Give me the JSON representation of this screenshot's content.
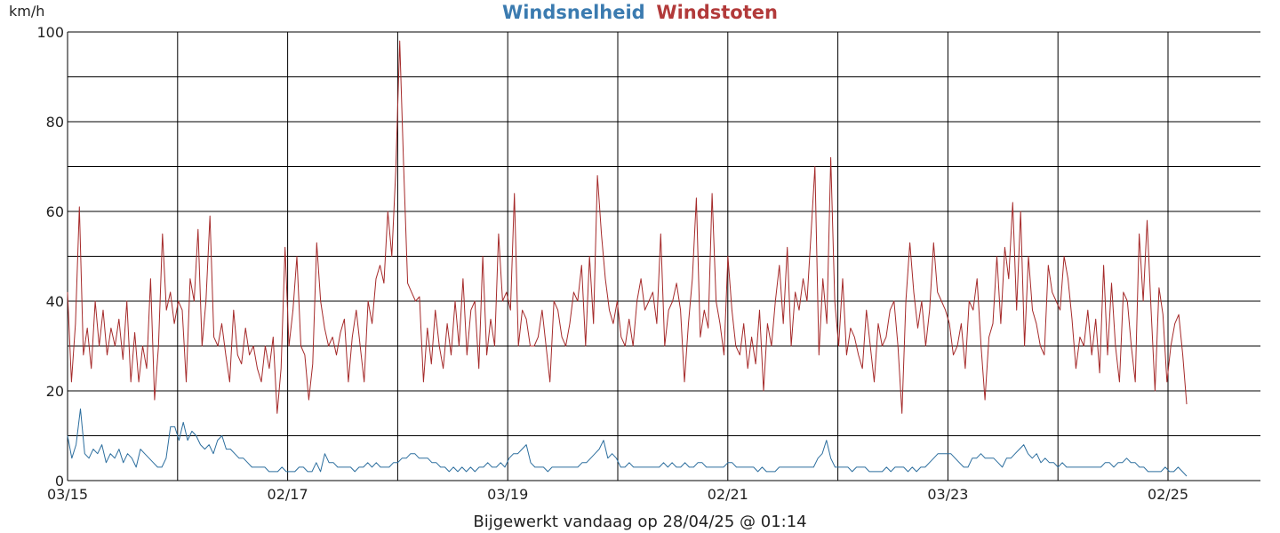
{
  "chart_data": {
    "type": "line",
    "title_series_1": "Windsnelheid",
    "title_series_2": "Windstoten",
    "ylabel": "km/h",
    "ylim": [
      0,
      100
    ],
    "yticks": [
      "0",
      "20",
      "40",
      "60",
      "80",
      "100"
    ],
    "xticks": [
      "03/15",
      "02/17",
      "03/19",
      "02/21",
      "03/23",
      "02/25"
    ],
    "footer": "Bijgewerkt vandaag op 28/04/25 @ 01:14",
    "grid": true,
    "colors": {
      "speed": "#2c6e9e",
      "gust": "#a52a2a"
    },
    "series": [
      {
        "name": "Windsnelheid",
        "values": [
          10,
          5,
          8,
          16,
          6,
          5,
          7,
          6,
          8,
          4,
          6,
          5,
          7,
          4,
          6,
          5,
          3,
          7,
          6,
          5,
          4,
          3,
          3,
          5,
          12,
          12,
          9,
          13,
          9,
          11,
          10,
          8,
          7,
          8,
          6,
          9,
          10,
          7,
          7,
          6,
          5,
          5,
          4,
          3,
          3,
          3,
          3,
          2,
          2,
          2,
          3,
          2,
          2,
          2,
          3,
          3,
          2,
          2,
          4,
          2,
          6,
          4,
          4,
          3,
          3,
          3,
          3,
          2,
          3,
          3,
          4,
          3,
          4,
          3,
          3,
          3,
          4,
          4,
          5,
          5,
          6,
          6,
          5,
          5,
          5,
          4,
          4,
          3,
          3,
          2,
          3,
          2,
          3,
          2,
          3,
          2,
          3,
          3,
          4,
          3,
          3,
          4,
          3,
          5,
          6,
          6,
          7,
          8,
          4,
          3,
          3,
          3,
          2,
          3,
          3,
          3,
          3,
          3,
          3,
          3,
          4,
          4,
          5,
          6,
          7,
          9,
          5,
          6,
          5,
          3,
          3,
          4,
          3,
          3,
          3,
          3,
          3,
          3,
          3,
          4,
          3,
          4,
          3,
          3,
          4,
          3,
          3,
          4,
          4,
          3,
          3,
          3,
          3,
          3,
          4,
          4,
          3,
          3,
          3,
          3,
          3,
          2,
          3,
          2,
          2,
          2,
          3,
          3,
          3,
          3,
          3,
          3,
          3,
          3,
          3,
          5,
          6,
          9,
          5,
          3,
          3,
          3,
          3,
          2,
          3,
          3,
          3,
          2,
          2,
          2,
          2,
          3,
          2,
          3,
          3,
          3,
          2,
          3,
          2,
          3,
          3,
          4,
          5,
          6,
          6,
          6,
          6,
          5,
          4,
          3,
          3,
          5,
          5,
          6,
          5,
          5,
          5,
          4,
          3,
          5,
          5,
          6,
          7,
          8,
          6,
          5,
          6,
          4,
          5,
          4,
          4,
          3,
          4,
          3,
          3,
          3,
          3,
          3,
          3,
          3,
          3,
          3,
          4,
          4,
          3,
          4,
          4,
          5,
          4,
          4,
          3,
          3,
          2,
          2,
          2,
          2,
          3,
          2,
          2,
          3,
          2,
          1
        ]
      },
      {
        "name": "Windstoten",
        "values": [
          42,
          22,
          35,
          61,
          28,
          34,
          25,
          40,
          30,
          38,
          28,
          34,
          30,
          36,
          27,
          40,
          22,
          33,
          22,
          30,
          25,
          45,
          18,
          30,
          55,
          38,
          42,
          35,
          40,
          38,
          22,
          45,
          40,
          56,
          30,
          40,
          59,
          32,
          30,
          35,
          28,
          22,
          38,
          28,
          26,
          34,
          28,
          30,
          25,
          22,
          30,
          25,
          32,
          15,
          25,
          52,
          30,
          38,
          50,
          30,
          28,
          18,
          26,
          53,
          40,
          34,
          30,
          32,
          28,
          33,
          36,
          22,
          32,
          38,
          30,
          22,
          40,
          35,
          45,
          48,
          44,
          60,
          50,
          69,
          98,
          70,
          44,
          42,
          40,
          41,
          22,
          34,
          26,
          38,
          30,
          25,
          35,
          28,
          40,
          30,
          45,
          28,
          38,
          40,
          25,
          50,
          28,
          36,
          30,
          55,
          40,
          42,
          38,
          64,
          30,
          38,
          36,
          30,
          30,
          32,
          38,
          30,
          22,
          40,
          38,
          32,
          30,
          35,
          42,
          40,
          48,
          30,
          50,
          35,
          68,
          55,
          45,
          38,
          35,
          40,
          32,
          30,
          36,
          30,
          40,
          45,
          38,
          40,
          42,
          35,
          55,
          30,
          38,
          40,
          44,
          38,
          22,
          35,
          45,
          63,
          32,
          38,
          34,
          64,
          40,
          35,
          28,
          50,
          38,
          30,
          28,
          35,
          25,
          32,
          26,
          38,
          20,
          35,
          30,
          40,
          48,
          35,
          52,
          30,
          42,
          38,
          45,
          40,
          55,
          70,
          28,
          45,
          35,
          72,
          40,
          30,
          45,
          28,
          34,
          32,
          28,
          25,
          38,
          30,
          22,
          35,
          30,
          32,
          38,
          40,
          30,
          15,
          40,
          53,
          42,
          34,
          40,
          30,
          38,
          53,
          42,
          40,
          38,
          35,
          28,
          30,
          35,
          25,
          40,
          38,
          45,
          30,
          18,
          32,
          35,
          50,
          35,
          52,
          45,
          62,
          38,
          60,
          30,
          50,
          38,
          35,
          30,
          28,
          48,
          42,
          40,
          38,
          50,
          45,
          36,
          25,
          32,
          30,
          38,
          28,
          36,
          24,
          48,
          28,
          44,
          30,
          22,
          42,
          40,
          30,
          22,
          55,
          40,
          58,
          38,
          20,
          43,
          37,
          22,
          30,
          35,
          37,
          28,
          17
        ]
      }
    ]
  }
}
